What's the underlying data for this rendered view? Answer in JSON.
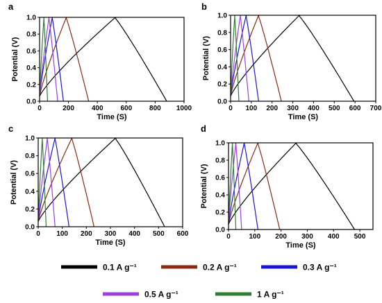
{
  "legend": [
    {
      "series": "0.1 A g⁻¹",
      "color": "#000000"
    },
    {
      "series": "0.2 A g⁻¹",
      "color": "#8B2A0E"
    },
    {
      "series": "0.3 A g⁻¹",
      "color": "#1A14D6"
    },
    {
      "series": "0.5 A g⁻¹",
      "color": "#9B3FE0"
    },
    {
      "series": "1 A g⁻¹",
      "color": "#2E7D32"
    }
  ],
  "chart_data": [
    {
      "type": "line",
      "panel_label": "a",
      "xlabel": "Time (S)",
      "ylabel": "Potential (V)",
      "xlim": [
        0,
        1000
      ],
      "ylim": [
        0,
        1.0
      ],
      "xticks": [
        0,
        200,
        400,
        600,
        800,
        1000
      ],
      "yticks": [
        0.0,
        0.2,
        0.4,
        0.6,
        0.8,
        1.0
      ],
      "series": [
        {
          "name": "0.1 A g⁻¹",
          "color": "#000000",
          "t_peak": 525,
          "t_end": 880
        },
        {
          "name": "0.2 A g⁻¹",
          "color": "#8B2A0E",
          "t_peak": 185,
          "t_end": 340
        },
        {
          "name": "0.3 A g⁻¹",
          "color": "#1A14D6",
          "t_peak": 88,
          "t_end": 165
        },
        {
          "name": "0.5 A g⁻¹",
          "color": "#9B3FE0",
          "t_peak": 65,
          "t_end": 125
        },
        {
          "name": "1 A g⁻¹",
          "color": "#2E7D32",
          "t_peak": 30,
          "t_end": 55
        }
      ]
    },
    {
      "type": "line",
      "panel_label": "b",
      "xlabel": "Time (S)",
      "ylabel": "Potential (V)",
      "xlim": [
        0,
        700
      ],
      "ylim": [
        0,
        1.0
      ],
      "xticks": [
        0,
        100,
        200,
        300,
        400,
        500,
        600,
        700
      ],
      "yticks": [
        0.0,
        0.2,
        0.4,
        0.6,
        0.8,
        1.0
      ],
      "series": [
        {
          "name": "0.1 A g⁻¹",
          "color": "#000000",
          "t_peak": 332,
          "t_end": 595
        },
        {
          "name": "0.2 A g⁻¹",
          "color": "#8B2A0E",
          "t_peak": 135,
          "t_end": 245
        },
        {
          "name": "0.3 A g⁻¹",
          "color": "#1A14D6",
          "t_peak": 75,
          "t_end": 135
        },
        {
          "name": "0.5 A g⁻¹",
          "color": "#9B3FE0",
          "t_peak": 47,
          "t_end": 88
        },
        {
          "name": "1 A g⁻¹",
          "color": "#2E7D32",
          "t_peak": 20,
          "t_end": 40
        }
      ]
    },
    {
      "type": "line",
      "panel_label": "c",
      "xlabel": "Time (S)",
      "ylabel": "Potential (V)",
      "xlim": [
        0,
        600
      ],
      "ylim": [
        0,
        1.0
      ],
      "xticks": [
        0,
        100,
        200,
        300,
        400,
        500,
        600
      ],
      "yticks": [
        0.0,
        0.2,
        0.4,
        0.6,
        0.8,
        1.0
      ],
      "series": [
        {
          "name": "0.1 A g⁻¹",
          "color": "#000000",
          "t_peak": 322,
          "t_end": 525
        },
        {
          "name": "0.2 A g⁻¹",
          "color": "#8B2A0E",
          "t_peak": 140,
          "t_end": 232
        },
        {
          "name": "0.3 A g⁻¹",
          "color": "#1A14D6",
          "t_peak": 70,
          "t_end": 128
        },
        {
          "name": "0.5 A g⁻¹",
          "color": "#9B3FE0",
          "t_peak": 38,
          "t_end": 70
        },
        {
          "name": "1 A g⁻¹",
          "color": "#2E7D32",
          "t_peak": 17,
          "t_end": 33
        }
      ]
    },
    {
      "type": "line",
      "panel_label": "d",
      "xlabel": "Time (S)",
      "ylabel": "Potential (V)",
      "xlim": [
        0,
        550
      ],
      "ylim": [
        0,
        1.0
      ],
      "xticks": [
        0,
        100,
        200,
        300,
        400,
        500
      ],
      "yticks": [
        0.0,
        0.2,
        0.4,
        0.6,
        0.8,
        1.0
      ],
      "series": [
        {
          "name": "0.1 A g⁻¹",
          "color": "#000000",
          "t_peak": 258,
          "t_end": 480
        },
        {
          "name": "0.2 A g⁻¹",
          "color": "#8B2A0E",
          "t_peak": 112,
          "t_end": 195
        },
        {
          "name": "0.3 A g⁻¹",
          "color": "#1A14D6",
          "t_peak": 60,
          "t_end": 112
        },
        {
          "name": "0.5 A g⁻¹",
          "color": "#9B3FE0",
          "t_peak": 28,
          "t_end": 50
        },
        {
          "name": "1 A g⁻¹",
          "color": "#2E7D32",
          "t_peak": 15,
          "t_end": 28
        }
      ]
    }
  ]
}
